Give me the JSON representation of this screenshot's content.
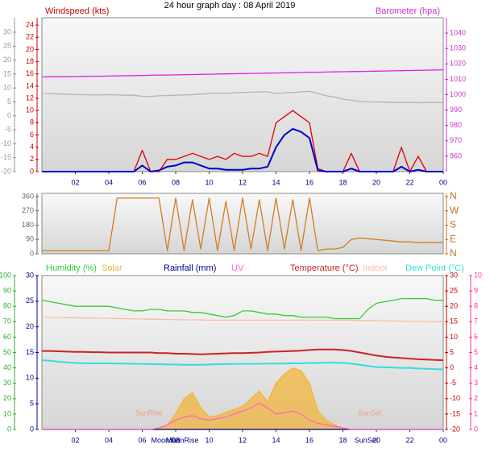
{
  "chart_data": [
    {
      "type": "line",
      "title": "24 hour graph day : 08 April 2019",
      "x": [
        0,
        0.5,
        1,
        1.5,
        2,
        2.5,
        3,
        3.5,
        4,
        4.5,
        5,
        5.5,
        6,
        6.5,
        7,
        7.5,
        8,
        8.5,
        9,
        9.5,
        10,
        10.5,
        11,
        11.5,
        12,
        12.5,
        13,
        13.5,
        14,
        14.5,
        15,
        15.5,
        16,
        16.5,
        17,
        17.5,
        18,
        18.5,
        19,
        19.5,
        20,
        20.5,
        21,
        21.5,
        22,
        22.5,
        23,
        23.5,
        24
      ],
      "xlim": [
        0,
        24
      ],
      "xticks": [
        {
          "value": 2,
          "label": "02"
        },
        {
          "value": 4,
          "label": "04"
        },
        {
          "value": 6,
          "label": "06"
        },
        {
          "value": 8,
          "label": "08"
        },
        {
          "value": 10,
          "label": "10"
        },
        12,
        14,
        16,
        18,
        20,
        22,
        {
          "value": 24,
          "label": "00"
        }
      ],
      "axes": [
        {
          "id": "y",
          "label": "Windspeed (kts)",
          "side": "left",
          "color": "#cc0000",
          "lim": [
            0,
            25.2
          ],
          "ticks": [
            0,
            2,
            4,
            6,
            8,
            10,
            12,
            14,
            16,
            18,
            20,
            22,
            24
          ]
        },
        {
          "id": "y3",
          "side": "left",
          "color": "#999999",
          "lim": [
            -20,
            35.2
          ],
          "ticks": [
            -20,
            -15,
            -10,
            -5,
            0,
            5,
            10,
            15,
            20,
            25,
            30
          ]
        },
        {
          "id": "y2",
          "label": "Barometer (hpa)",
          "side": "right",
          "color": "#cc33cc",
          "lim": [
            950,
            1050
          ],
          "ticks": [
            960,
            970,
            980,
            990,
            1000,
            1010,
            1020,
            1030,
            1040
          ]
        }
      ],
      "series": [
        {
          "axis": "y3",
          "color": "#b4b4b4",
          "values": [
            8,
            8,
            7.8,
            7.8,
            7.6,
            7.6,
            7.5,
            7.5,
            7.6,
            7.5,
            7.4,
            7.4,
            7,
            7,
            7.2,
            7.3,
            7.4,
            7.5,
            7.6,
            7.8,
            8,
            8.2,
            8,
            8.3,
            8.4,
            8.5,
            8.6,
            8.6,
            8,
            8.2,
            8.4,
            8.6,
            8.8,
            8,
            7.2,
            6.8,
            6,
            5.6,
            5.2,
            5,
            5,
            4.9,
            4.8,
            4.8,
            4.8,
            4.7,
            4.8,
            4.8,
            4.8
          ]
        },
        {
          "axis": "y2",
          "color": "#e020e0",
          "values": [
            1011.5,
            1011.6,
            1011.6,
            1011.7,
            1011.8,
            1011.9,
            1012,
            1012,
            1012.1,
            1012.2,
            1012.3,
            1012.4,
            1012.5,
            1012.6,
            1012.7,
            1012.8,
            1012.9,
            1013,
            1013.1,
            1013.2,
            1013.3,
            1013.4,
            1013.5,
            1013.6,
            1013.7,
            1013.8,
            1013.9,
            1014,
            1014.1,
            1014.2,
            1014.3,
            1014.4,
            1014.5,
            1014.6,
            1014.7,
            1014.8,
            1014.9,
            1015,
            1015.1,
            1015.2,
            1015.3,
            1015.4,
            1015.5,
            1015.6,
            1015.7,
            1015.8,
            1015.9,
            1016,
            1016.1
          ]
        },
        {
          "axis": "y",
          "color": "#e00000",
          "values": [
            0,
            0,
            0,
            0,
            0,
            0,
            0,
            0,
            0,
            0,
            0,
            0,
            3.5,
            0,
            0,
            2,
            2,
            2.5,
            3,
            2.5,
            2,
            2.5,
            2,
            3,
            2.5,
            2.5,
            3,
            2.5,
            8,
            9,
            10,
            9,
            8,
            0.5,
            0,
            0,
            0,
            3,
            0,
            0,
            0,
            0,
            0,
            4,
            0,
            2.5,
            0,
            0,
            0
          ]
        },
        {
          "axis": "y",
          "color": "#0000cc",
          "width": 2,
          "values": [
            0,
            0,
            0,
            0,
            0,
            0,
            0,
            0,
            0,
            0,
            0,
            0,
            1,
            0,
            0.2,
            0.8,
            1,
            1.5,
            1.5,
            1,
            0.5,
            0.5,
            0.3,
            0.3,
            0.3,
            0.5,
            0.5,
            0.8,
            4,
            6,
            7,
            6.5,
            5.5,
            0.2,
            0,
            0,
            0,
            0.5,
            0,
            0,
            0,
            0,
            0,
            0.8,
            0,
            0.3,
            0,
            0,
            0
          ]
        }
      ]
    },
    {
      "type": "line",
      "x": [
        0,
        0.5,
        1,
        1.5,
        2,
        2.5,
        3,
        3.5,
        4,
        4.5,
        5,
        5.5,
        6,
        6.5,
        7,
        7.5,
        8,
        8.5,
        9,
        9.5,
        10,
        10.5,
        11,
        11.5,
        12,
        12.5,
        13,
        13.5,
        14,
        14.5,
        15,
        15.5,
        16,
        16.5,
        17,
        17.5,
        18,
        18.5,
        19,
        19.5,
        20,
        20.5,
        21,
        21.5,
        22,
        22.5,
        23,
        23.5,
        24
      ],
      "xlim": [
        0,
        24
      ],
      "axes": [
        {
          "id": "y",
          "side": "left",
          "color": "#666666",
          "lim": [
            0,
            380
          ],
          "ticks": [
            0,
            90,
            180,
            270,
            360
          ]
        },
        {
          "id": "y2",
          "side": "right",
          "color": "#c87020",
          "lim": [
            0,
            380
          ],
          "ticks": [
            {
              "value": 0,
              "label": "N"
            },
            {
              "value": 90,
              "label": "E"
            },
            {
              "value": 180,
              "label": "S"
            },
            {
              "value": 270,
              "label": "W"
            },
            {
              "value": 360,
              "label": "N"
            }
          ]
        }
      ],
      "series": [
        {
          "axis": "y",
          "color": "#d07f20",
          "values": [
            20,
            20,
            20,
            20,
            20,
            20,
            20,
            20,
            20,
            350,
            350,
            350,
            350,
            350,
            350,
            20,
            350,
            20,
            340,
            30,
            350,
            20,
            330,
            20,
            350,
            30,
            340,
            20,
            350,
            30,
            340,
            20,
            350,
            20,
            30,
            30,
            40,
            90,
            100,
            95,
            90,
            85,
            80,
            75,
            75,
            70,
            72,
            70,
            70
          ]
        }
      ]
    },
    {
      "type": "line",
      "x": [
        0,
        0.5,
        1,
        1.5,
        2,
        2.5,
        3,
        3.5,
        4,
        4.5,
        5,
        5.5,
        6,
        6.5,
        7,
        7.5,
        8,
        8.5,
        9,
        9.5,
        10,
        10.5,
        11,
        11.5,
        12,
        12.5,
        13,
        13.5,
        14,
        14.5,
        15,
        15.5,
        16,
        16.5,
        17,
        17.5,
        18,
        18.5,
        19,
        19.5,
        20,
        20.5,
        21,
        21.5,
        22,
        22.5,
        23,
        23.5,
        24
      ],
      "xlim": [
        0,
        24
      ],
      "xticks": [
        {
          "value": 2,
          "label": "02"
        },
        {
          "value": 4,
          "label": "04"
        },
        {
          "value": 6,
          "label": "06"
        },
        {
          "value": 8,
          "label": "08"
        },
        {
          "value": 10,
          "label": "10"
        },
        12,
        14,
        16,
        18,
        20,
        22,
        {
          "value": 24,
          "label": "00"
        }
      ],
      "axes": [
        {
          "id": "y2",
          "side": "left",
          "color": "#000099",
          "lim": [
            0,
            30
          ],
          "ticks": [
            0,
            5,
            10,
            15,
            20,
            25,
            30
          ]
        },
        {
          "id": "y",
          "side": "left",
          "color": "#33aa33",
          "lim": [
            0,
            100
          ],
          "ticks": [
            0,
            10,
            20,
            30,
            40,
            50,
            60,
            70,
            80,
            90,
            100
          ]
        },
        {
          "id": "y3",
          "side": "right",
          "color": "#cc0000",
          "lim": [
            -20,
            30
          ],
          "ticks": [
            -20,
            -15,
            -10,
            -5,
            0,
            5,
            10,
            15,
            20,
            25,
            30
          ]
        },
        {
          "id": "y4",
          "side": "right",
          "color": "#ff3399",
          "lim": [
            0,
            10
          ],
          "ticks": [
            0,
            1,
            2,
            3,
            4,
            5,
            6,
            7,
            8,
            9,
            10
          ]
        }
      ],
      "series": [
        {
          "name": "Humidity (%)",
          "axis": "y",
          "color": "#33cc33",
          "values": [
            84,
            83,
            82,
            81,
            80,
            80,
            80,
            80,
            80,
            79,
            78,
            77,
            77,
            78,
            78,
            77,
            77,
            77,
            76,
            76,
            75,
            74,
            73,
            74,
            77,
            77,
            76,
            75,
            75,
            74,
            74,
            73,
            73,
            73,
            73,
            72,
            72,
            72,
            72,
            78,
            82,
            83,
            84,
            85,
            85,
            85,
            85,
            84,
            84
          ]
        },
        {
          "name": "Solar",
          "axis": "y",
          "color": "#f2b53c",
          "fill": true,
          "values": [
            0,
            0,
            0,
            0,
            0,
            0,
            0,
            0,
            0,
            0,
            0,
            0,
            0,
            0,
            1,
            3,
            10,
            20,
            24,
            14,
            8,
            9,
            11,
            13,
            15,
            20,
            25,
            18,
            30,
            36,
            40,
            38,
            30,
            12,
            6,
            3,
            1,
            0,
            0,
            0,
            0,
            0,
            0,
            0,
            0,
            0,
            0,
            0,
            0
          ]
        },
        {
          "name": "Rainfall (mm)",
          "axis": "y2",
          "color": "#000099",
          "values": [
            0,
            0,
            0,
            0,
            0,
            0,
            0,
            0,
            0,
            0,
            0,
            0,
            0,
            0,
            0,
            0,
            0,
            0,
            0,
            0,
            0,
            0,
            0,
            0,
            0,
            0,
            0,
            0,
            0,
            0,
            0,
            0,
            0,
            0,
            0,
            0,
            0,
            0,
            0,
            0,
            0,
            0,
            0,
            0,
            0,
            0,
            0,
            0,
            0
          ]
        },
        {
          "name": "UV",
          "axis": "y4",
          "color": "#ff66cc",
          "values": [
            0,
            0,
            0,
            0,
            0,
            0,
            0,
            0,
            0,
            0,
            0,
            0,
            0,
            0,
            0.1,
            0.3,
            0.6,
            0.8,
            0.9,
            0.7,
            0.6,
            0.7,
            0.8,
            1,
            1.2,
            1.4,
            1.7,
            1.4,
            1,
            1.1,
            1.2,
            1,
            0.6,
            0.4,
            0.3,
            0.2,
            0.1,
            0,
            0,
            0,
            0,
            0,
            0,
            0,
            0,
            0,
            0,
            0,
            0
          ]
        },
        {
          "name": "Temperature (°C)",
          "axis": "y3",
          "color": "#cc2222",
          "width": 2,
          "values": [
            5.5,
            5.5,
            5.4,
            5.3,
            5.2,
            5.2,
            5.1,
            5.1,
            5,
            5,
            5,
            5,
            5,
            5,
            4.8,
            4.8,
            4.6,
            4.6,
            4.5,
            4.4,
            4.5,
            4.6,
            4.7,
            4.8,
            4.8,
            4.9,
            5,
            5.2,
            5.3,
            5.4,
            5.5,
            5.6,
            5.8,
            6,
            6,
            6,
            5.8,
            5.5,
            5,
            4.5,
            4,
            3.6,
            3.4,
            3.2,
            3,
            2.8,
            2.7,
            2.6,
            2.5
          ]
        },
        {
          "name": "Indoor",
          "axis": "y3",
          "color": "#f4c0a0",
          "values": [
            16.5,
            16.4,
            16.4,
            16.3,
            16.3,
            16.2,
            16.2,
            16.1,
            16.1,
            16,
            16,
            15.9,
            15.9,
            15.8,
            15.8,
            15.7,
            15.7,
            15.6,
            15.6,
            15.6,
            15.5,
            15.5,
            15.5,
            15.5,
            15.5,
            15.5,
            15.5,
            15.5,
            15.5,
            15.5,
            15.5,
            15.5,
            15.5,
            15.5,
            15.5,
            15.5,
            15.5,
            15.5,
            15.4,
            15.4,
            15.3,
            15.3,
            15.2,
            15.2,
            15.1,
            15.1,
            15,
            15,
            15
          ]
        },
        {
          "name": "Dew Point (°C)",
          "axis": "y3",
          "color": "#33dddd",
          "width": 2,
          "values": [
            2.5,
            2.3,
            2,
            1.8,
            1.6,
            1.5,
            1.5,
            1.5,
            1.5,
            1.4,
            1.4,
            1.3,
            1.3,
            1.2,
            1.2,
            1.1,
            1.1,
            1,
            1,
            1,
            1.1,
            1.2,
            1.2,
            1.3,
            1.3,
            1.3,
            1.3,
            1.4,
            1.4,
            1.4,
            1.5,
            1.5,
            1.6,
            1.6,
            1.7,
            1.7,
            1.6,
            1.4,
            1,
            0.6,
            0.3,
            0.2,
            0.1,
            0,
            0,
            -0.2,
            -0.3,
            -0.4,
            -0.5
          ]
        }
      ],
      "annotations": [
        {
          "text": "SunRise",
          "x": 6.4,
          "position": "inside"
        },
        {
          "text": "SunSet",
          "x": 19.6,
          "position": "inside"
        },
        {
          "text": "MoonSet",
          "x": 7.4,
          "position": "below"
        },
        {
          "text": "MoonRise",
          "x": 8.4,
          "position": "below"
        },
        {
          "text": "SunSet",
          "x": 19.4,
          "position": "below"
        }
      ]
    }
  ]
}
